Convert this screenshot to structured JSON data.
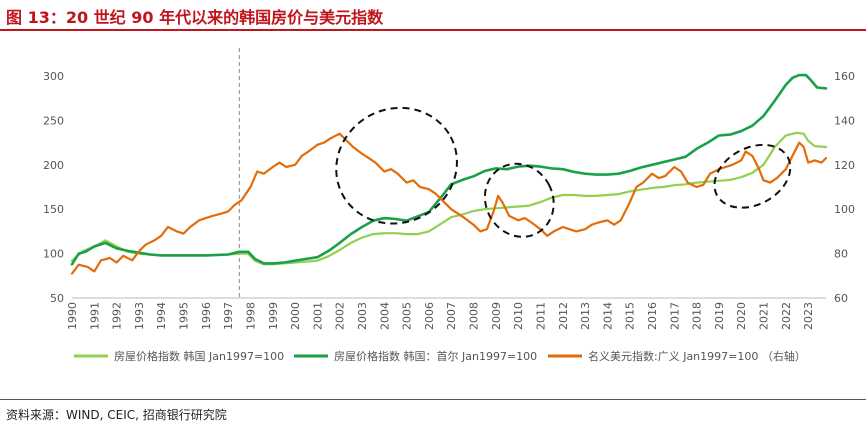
{
  "header": {
    "title": "图 13：20 世纪 90 年代以来的韩国房价与美元指数"
  },
  "footer": {
    "source": "资料来源：WIND, CEIC, 招商银行研究院"
  },
  "colors": {
    "title": "#c0151d",
    "national": "#92d050",
    "seoul": "#1aa04a",
    "usd": "#e36c0a",
    "ellipse": "#111111",
    "vline": "#888888"
  },
  "chart_data": {
    "type": "line",
    "x_ticks": [
      "1990",
      "1991",
      "1992",
      "1993",
      "1994",
      "1995",
      "1996",
      "1997",
      "1998",
      "1999",
      "2000",
      "2001",
      "2002",
      "2003",
      "2004",
      "2005",
      "2006",
      "2007",
      "2008",
      "2009",
      "2010",
      "2011",
      "2012",
      "2013",
      "2014",
      "2015",
      "2016",
      "2017",
      "2018",
      "2019",
      "2020",
      "2021",
      "2022",
      "2023"
    ],
    "y_left": {
      "min": 50,
      "max": 300,
      "ticks": [
        "50",
        "100",
        "150",
        "200",
        "250",
        "300"
      ]
    },
    "y_right": {
      "min": 60,
      "max": 160,
      "ticks": [
        "60",
        "80",
        "100",
        "120",
        "140",
        "160"
      ]
    },
    "x_range": [
      1990,
      2023.8
    ],
    "reference_line_x": 1997.5,
    "series": [
      {
        "name": "房屋价格指数 韩国 Jan1997=100",
        "axis": "left",
        "key": "national",
        "points": [
          [
            1990,
            92
          ],
          [
            1990.5,
            103
          ],
          [
            1991,
            108
          ],
          [
            1991.5,
            115
          ],
          [
            1992,
            108
          ],
          [
            1992.5,
            102
          ],
          [
            1993,
            100
          ],
          [
            1993.5,
            99
          ],
          [
            1994,
            98
          ],
          [
            1995,
            98
          ],
          [
            1996,
            98
          ],
          [
            1997,
            99
          ],
          [
            1997.5,
            100
          ],
          [
            1997.9,
            100
          ],
          [
            1998.2,
            92
          ],
          [
            1998.6,
            88
          ],
          [
            1999,
            88
          ],
          [
            1999.5,
            89
          ],
          [
            2000,
            90
          ],
          [
            2000.5,
            91
          ],
          [
            2001,
            92
          ],
          [
            2001.5,
            97
          ],
          [
            2002,
            104
          ],
          [
            2002.5,
            112
          ],
          [
            2003,
            118
          ],
          [
            2003.5,
            122
          ],
          [
            2004,
            123
          ],
          [
            2004.5,
            123
          ],
          [
            2005,
            122
          ],
          [
            2005.5,
            122
          ],
          [
            2006,
            125
          ],
          [
            2006.5,
            133
          ],
          [
            2007,
            141
          ],
          [
            2007.5,
            144
          ],
          [
            2008,
            148
          ],
          [
            2008.5,
            150
          ],
          [
            2009,
            151
          ],
          [
            2009.5,
            152
          ],
          [
            2010,
            153
          ],
          [
            2010.5,
            154
          ],
          [
            2011,
            158
          ],
          [
            2011.5,
            163
          ],
          [
            2012,
            166
          ],
          [
            2012.5,
            166
          ],
          [
            2013,
            165
          ],
          [
            2013.5,
            165
          ],
          [
            2014,
            166
          ],
          [
            2014.5,
            167
          ],
          [
            2015,
            170
          ],
          [
            2015.5,
            172
          ],
          [
            2016,
            174
          ],
          [
            2016.5,
            175
          ],
          [
            2017,
            177
          ],
          [
            2017.5,
            178
          ],
          [
            2018,
            180
          ],
          [
            2018.5,
            181
          ],
          [
            2019,
            182
          ],
          [
            2019.5,
            183
          ],
          [
            2020,
            186
          ],
          [
            2020.5,
            191
          ],
          [
            2021,
            200
          ],
          [
            2021.5,
            220
          ],
          [
            2022,
            233
          ],
          [
            2022.5,
            236
          ],
          [
            2022.8,
            235
          ],
          [
            2023,
            227
          ],
          [
            2023.3,
            221
          ],
          [
            2023.8,
            220
          ]
        ]
      },
      {
        "name": "房屋价格指数 韩国：首尔 Jan1997=100",
        "axis": "left",
        "key": "seoul",
        "points": [
          [
            1990,
            88
          ],
          [
            1990.3,
            100
          ],
          [
            1990.6,
            102
          ],
          [
            1991,
            108
          ],
          [
            1991.5,
            112
          ],
          [
            1992,
            106
          ],
          [
            1992.5,
            103
          ],
          [
            1993,
            101
          ],
          [
            1993.5,
            99
          ],
          [
            1994,
            98
          ],
          [
            1995,
            98
          ],
          [
            1996,
            98
          ],
          [
            1997,
            99
          ],
          [
            1997.5,
            102
          ],
          [
            1997.9,
            102
          ],
          [
            1998.2,
            94
          ],
          [
            1998.6,
            89
          ],
          [
            1999,
            89
          ],
          [
            1999.5,
            90
          ],
          [
            2000,
            92
          ],
          [
            2000.5,
            94
          ],
          [
            2001,
            96
          ],
          [
            2001.5,
            103
          ],
          [
            2002,
            112
          ],
          [
            2002.5,
            122
          ],
          [
            2003,
            130
          ],
          [
            2003.5,
            137
          ],
          [
            2004,
            140
          ],
          [
            2004.5,
            139
          ],
          [
            2005,
            137
          ],
          [
            2005.5,
            142
          ],
          [
            2006,
            147
          ],
          [
            2006.5,
            162
          ],
          [
            2007,
            178
          ],
          [
            2007.5,
            183
          ],
          [
            2008,
            187
          ],
          [
            2008.5,
            193
          ],
          [
            2009,
            196
          ],
          [
            2009.5,
            195
          ],
          [
            2010,
            198
          ],
          [
            2010.5,
            199
          ],
          [
            2011,
            198
          ],
          [
            2011.5,
            196
          ],
          [
            2012,
            195
          ],
          [
            2012.5,
            192
          ],
          [
            2013,
            190
          ],
          [
            2013.5,
            189
          ],
          [
            2014,
            189
          ],
          [
            2014.5,
            190
          ],
          [
            2015,
            193
          ],
          [
            2015.5,
            197
          ],
          [
            2016,
            200
          ],
          [
            2016.5,
            203
          ],
          [
            2017,
            206
          ],
          [
            2017.5,
            209
          ],
          [
            2018,
            218
          ],
          [
            2018.5,
            225
          ],
          [
            2019,
            233
          ],
          [
            2019.5,
            234
          ],
          [
            2020,
            238
          ],
          [
            2020.5,
            244
          ],
          [
            2021,
            255
          ],
          [
            2021.5,
            272
          ],
          [
            2022,
            290
          ],
          [
            2022.3,
            298
          ],
          [
            2022.6,
            301
          ],
          [
            2022.9,
            301
          ],
          [
            2023.1,
            296
          ],
          [
            2023.4,
            287
          ],
          [
            2023.8,
            286
          ]
        ]
      },
      {
        "name": "名义美元指数:广义 Jan1997=100 （右轴）",
        "axis": "right",
        "key": "usd",
        "points": [
          [
            1990,
            71
          ],
          [
            1990.3,
            75
          ],
          [
            1990.7,
            74
          ],
          [
            1991,
            72
          ],
          [
            1991.3,
            77
          ],
          [
            1991.7,
            78
          ],
          [
            1992,
            76
          ],
          [
            1992.3,
            79
          ],
          [
            1992.7,
            77
          ],
          [
            1993,
            81
          ],
          [
            1993.3,
            84
          ],
          [
            1993.7,
            86
          ],
          [
            1994,
            88
          ],
          [
            1994.3,
            92
          ],
          [
            1994.7,
            90
          ],
          [
            1995,
            89
          ],
          [
            1995.3,
            92
          ],
          [
            1995.7,
            95
          ],
          [
            1996,
            96
          ],
          [
            1996.3,
            97
          ],
          [
            1996.7,
            98
          ],
          [
            1997,
            99
          ],
          [
            1997.3,
            102
          ],
          [
            1997.6,
            104
          ],
          [
            1998,
            110
          ],
          [
            1998.3,
            117
          ],
          [
            1998.6,
            116
          ],
          [
            1999,
            119
          ],
          [
            1999.3,
            121
          ],
          [
            1999.6,
            119
          ],
          [
            2000,
            120
          ],
          [
            2000.3,
            124
          ],
          [
            2000.6,
            126
          ],
          [
            2001,
            129
          ],
          [
            2001.3,
            130
          ],
          [
            2001.6,
            132
          ],
          [
            2002,
            134
          ],
          [
            2002.3,
            131
          ],
          [
            2002.6,
            128
          ],
          [
            2003,
            125
          ],
          [
            2003.3,
            123
          ],
          [
            2003.6,
            121
          ],
          [
            2004,
            117
          ],
          [
            2004.3,
            118
          ],
          [
            2004.6,
            116
          ],
          [
            2005,
            112
          ],
          [
            2005.3,
            113
          ],
          [
            2005.6,
            110
          ],
          [
            2006,
            109
          ],
          [
            2006.3,
            107
          ],
          [
            2006.6,
            104
          ],
          [
            2007,
            100
          ],
          [
            2007.3,
            98
          ],
          [
            2007.6,
            96
          ],
          [
            2008,
            93
          ],
          [
            2008.3,
            90
          ],
          [
            2008.6,
            91
          ],
          [
            2008.9,
            99
          ],
          [
            2009.1,
            106
          ],
          [
            2009.3,
            103
          ],
          [
            2009.6,
            97
          ],
          [
            2010,
            95
          ],
          [
            2010.3,
            96
          ],
          [
            2010.6,
            94
          ],
          [
            2011,
            91
          ],
          [
            2011.3,
            88
          ],
          [
            2011.6,
            90
          ],
          [
            2012,
            92
          ],
          [
            2012.3,
            91
          ],
          [
            2012.6,
            90
          ],
          [
            2013,
            91
          ],
          [
            2013.3,
            93
          ],
          [
            2013.6,
            94
          ],
          [
            2014,
            95
          ],
          [
            2014.3,
            93
          ],
          [
            2014.6,
            95
          ],
          [
            2015,
            103
          ],
          [
            2015.3,
            110
          ],
          [
            2015.6,
            112
          ],
          [
            2016,
            116
          ],
          [
            2016.3,
            114
          ],
          [
            2016.6,
            115
          ],
          [
            2017,
            119
          ],
          [
            2017.3,
            117
          ],
          [
            2017.6,
            112
          ],
          [
            2018,
            110
          ],
          [
            2018.3,
            111
          ],
          [
            2018.6,
            116
          ],
          [
            2019,
            118
          ],
          [
            2019.3,
            119
          ],
          [
            2019.6,
            120
          ],
          [
            2020,
            122
          ],
          [
            2020.2,
            126
          ],
          [
            2020.5,
            124
          ],
          [
            2020.8,
            118
          ],
          [
            2021,
            113
          ],
          [
            2021.3,
            112
          ],
          [
            2021.6,
            114
          ],
          [
            2022,
            118
          ],
          [
            2022.3,
            124
          ],
          [
            2022.6,
            130
          ],
          [
            2022.8,
            128
          ],
          [
            2023,
            121
          ],
          [
            2023.3,
            122
          ],
          [
            2023.6,
            121
          ],
          [
            2023.8,
            123
          ]
        ]
      }
    ],
    "annotations": [
      {
        "type": "ellipse",
        "cx": 2004.55,
        "cy": 199,
        "rx_years": 2.75,
        "ry": 64,
        "angle": -28
      },
      {
        "type": "ellipse",
        "cx": 2010.05,
        "cy": 160,
        "rx_years": 1.5,
        "ry": 42,
        "angle": -28
      },
      {
        "type": "ellipse",
        "cx": 2020.5,
        "cy": 187,
        "rx_years": 1.8,
        "ry": 32,
        "angle": -28
      }
    ]
  }
}
